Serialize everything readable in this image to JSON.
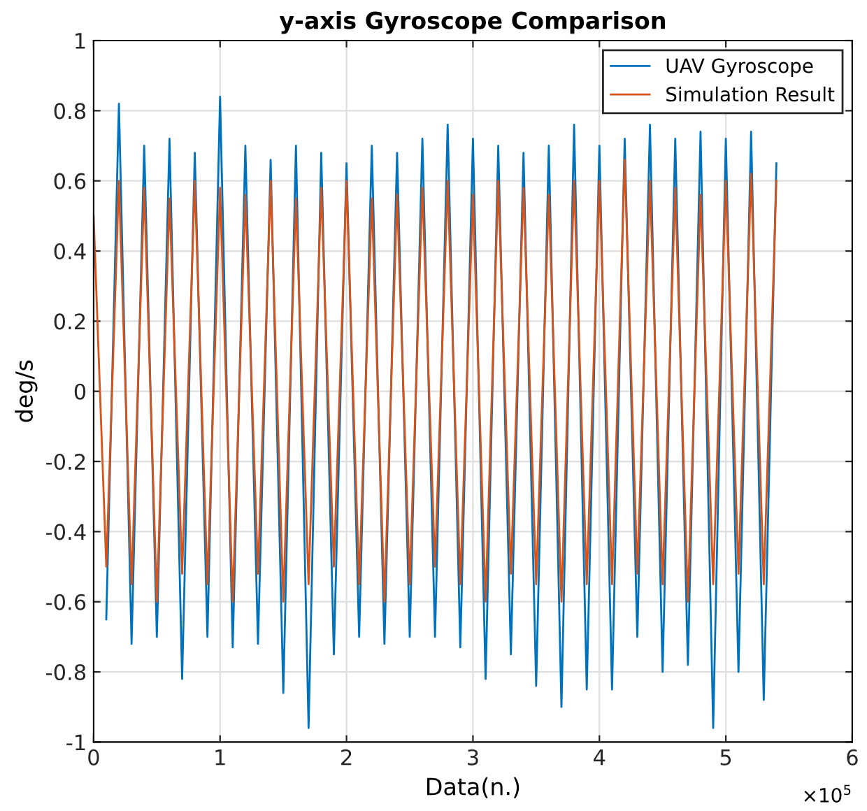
{
  "chart_data": {
    "type": "line",
    "title": "y-axis Gyroscope Comparison",
    "xlabel": "Data(n.)",
    "ylabel": "deg/s",
    "annotations": [
      "×10$^{5}$"
    ],
    "x": [
      0,
      0.1,
      0.2,
      0.3,
      0.4,
      0.5,
      0.6,
      0.7,
      0.8,
      0.9,
      1.0,
      1.1,
      1.2,
      1.3,
      1.4,
      1.5,
      1.6,
      1.7,
      1.8,
      1.9,
      2.0,
      2.1,
      2.2,
      2.3,
      2.4,
      2.5,
      2.6,
      2.7,
      2.8,
      2.9,
      3.0,
      3.1,
      3.2,
      3.3,
      3.4,
      3.5,
      3.6,
      3.7,
      3.8,
      3.9,
      4.0,
      4.1,
      4.2,
      4.3,
      4.4,
      4.5,
      4.6,
      4.7,
      4.8,
      4.9,
      5.0,
      5.1,
      5.2,
      5.3,
      5.4
    ],
    "series": [
      {
        "name": "UAV Gyroscope",
        "color": "#0072bd",
        "values": [
          null,
          -0.65,
          0.82,
          -0.72,
          0.7,
          -0.7,
          0.72,
          -0.82,
          0.68,
          -0.7,
          0.84,
          -0.73,
          0.7,
          -0.72,
          0.66,
          -0.86,
          0.7,
          -0.96,
          0.68,
          -0.75,
          0.65,
          -0.7,
          0.7,
          -0.72,
          0.68,
          -0.7,
          0.72,
          -0.7,
          0.76,
          -0.73,
          0.72,
          -0.82,
          0.7,
          -0.75,
          0.68,
          -0.84,
          0.7,
          -0.9,
          0.76,
          -0.85,
          0.7,
          -0.85,
          0.72,
          -0.7,
          0.76,
          -0.8,
          0.72,
          -0.78,
          0.74,
          -0.96,
          0.72,
          -0.8,
          0.74,
          -0.88,
          0.65
        ]
      },
      {
        "name": "Simulation Result",
        "color": "#d95319",
        "values": [
          0.5,
          -0.5,
          0.6,
          -0.55,
          0.58,
          -0.6,
          0.55,
          -0.52,
          0.6,
          -0.55,
          0.58,
          -0.6,
          0.56,
          -0.52,
          0.6,
          -0.6,
          0.55,
          -0.55,
          0.58,
          -0.5,
          0.6,
          -0.55,
          0.55,
          -0.6,
          0.56,
          -0.55,
          0.58,
          -0.5,
          0.6,
          -0.55,
          0.56,
          -0.6,
          0.6,
          -0.52,
          0.58,
          -0.55,
          0.56,
          -0.6,
          0.6,
          -0.55,
          0.6,
          -0.55,
          0.66,
          -0.52,
          0.6,
          -0.55,
          0.58,
          -0.6,
          0.56,
          -0.55,
          0.6,
          -0.52,
          0.62,
          -0.55,
          0.6
        ]
      }
    ],
    "xlim": [
      0,
      6
    ],
    "xticks": [
      0,
      1,
      2,
      3,
      4,
      5,
      6
    ],
    "ylim": [
      -1,
      1
    ],
    "yticks": [
      -1,
      -0.8,
      -0.6,
      -0.4,
      -0.2,
      0,
      0.2,
      0.4,
      0.6,
      0.8,
      1
    ],
    "grid": true,
    "legend": "top right",
    "marker": "none",
    "line_style": "solid"
  }
}
